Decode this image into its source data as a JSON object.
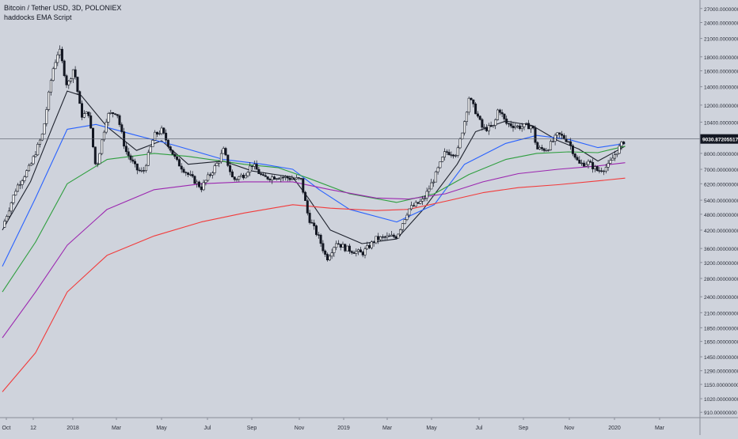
{
  "legend": {
    "symbol": "Bitcoin / Tether USD, 3D, POLONIEX",
    "script": "haddocks EMA Script"
  },
  "colors": {
    "background": "#cfd3dc",
    "ema_black": "#1e222d",
    "ema_blue": "#2962ff",
    "ema_green": "#2e9e3e",
    "ema_purple": "#9c27b0",
    "ema_red": "#f23b3b",
    "candle": "#131722",
    "axis_text": "#2a2e39"
  },
  "chart_data": {
    "type": "candlestick",
    "scale": "log",
    "title": "Bitcoin / Tether USD, 3D, POLONIEX",
    "x_ticks": [
      "Oct",
      "12",
      "2018",
      "Mar",
      "May",
      "Jul",
      "Sep",
      "Nov",
      "2019",
      "Mar",
      "May",
      "Jul",
      "Sep",
      "Nov",
      "2020",
      "Mar"
    ],
    "y_ticks": [
      "27000.00000000",
      "24000.00000000",
      "21000.00000000",
      "18000.00000000",
      "16000.00000000",
      "14000.00000000",
      "12000.00000000",
      "10400.00000000",
      "8000.00000000",
      "7000.00000000",
      "6200.00000000",
      "5400.00000000",
      "4800.00000000",
      "4200.00000000",
      "3600.00000000",
      "3200.00000000",
      "2800.00000000",
      "2400.00000000",
      "2100.00000000",
      "1850.00000000",
      "1650.00000000",
      "1450.00000000",
      "1290.00000000",
      "1150.00000000",
      "1020.00000000",
      "910.00000000"
    ],
    "ylim": [
      870,
      29000
    ],
    "last_price": "9030.87205517",
    "close_path": [
      [
        "2017-10-01",
        4300
      ],
      [
        "2017-10-20",
        6000
      ],
      [
        "2017-11-08",
        7200
      ],
      [
        "2017-11-25",
        9500
      ],
      [
        "2017-12-08",
        16000
      ],
      [
        "2017-12-17",
        19300
      ],
      [
        "2017-12-28",
        14000
      ],
      [
        "2018-01-06",
        16500
      ],
      [
        "2018-01-16",
        11000
      ],
      [
        "2018-01-26",
        11200
      ],
      [
        "2018-02-05",
        7000
      ],
      [
        "2018-02-20",
        11000
      ],
      [
        "2018-03-05",
        11400
      ],
      [
        "2018-03-17",
        8200
      ],
      [
        "2018-04-01",
        7000
      ],
      [
        "2018-04-10",
        6800
      ],
      [
        "2018-04-25",
        9300
      ],
      [
        "2018-05-05",
        9700
      ],
      [
        "2018-05-25",
        7500
      ],
      [
        "2018-06-10",
        6700
      ],
      [
        "2018-06-28",
        6000
      ],
      [
        "2018-07-20",
        7400
      ],
      [
        "2018-07-28",
        8200
      ],
      [
        "2018-08-10",
        6400
      ],
      [
        "2018-08-25",
        6700
      ],
      [
        "2018-09-05",
        7300
      ],
      [
        "2018-09-20",
        6500
      ],
      [
        "2018-10-10",
        6600
      ],
      [
        "2018-11-10",
        6400
      ],
      [
        "2018-11-20",
        4700
      ],
      [
        "2018-12-05",
        3900
      ],
      [
        "2018-12-15",
        3300
      ],
      [
        "2018-12-28",
        3800
      ],
      [
        "2019-01-10",
        3600
      ],
      [
        "2019-02-01",
        3450
      ],
      [
        "2019-02-20",
        3900
      ],
      [
        "2019-03-20",
        4000
      ],
      [
        "2019-04-05",
        5000
      ],
      [
        "2019-04-25",
        5400
      ],
      [
        "2019-05-10",
        6500
      ],
      [
        "2019-05-25",
        8100
      ],
      [
        "2019-06-10",
        8000
      ],
      [
        "2019-06-20",
        10500
      ],
      [
        "2019-06-26",
        12800
      ],
      [
        "2019-07-05",
        11400
      ],
      [
        "2019-07-15",
        9800
      ],
      [
        "2019-07-30",
        10000
      ],
      [
        "2019-08-05",
        11800
      ],
      [
        "2019-08-15",
        10300
      ],
      [
        "2019-09-01",
        10000
      ],
      [
        "2019-09-20",
        10100
      ],
      [
        "2019-09-26",
        8300
      ],
      [
        "2019-10-10",
        8300
      ],
      [
        "2019-10-25",
        9400
      ],
      [
        "2019-11-08",
        8900
      ],
      [
        "2019-11-22",
        7300
      ],
      [
        "2019-12-05",
        7400
      ],
      [
        "2019-12-18",
        6900
      ],
      [
        "2020-01-01",
        7200
      ],
      [
        "2020-01-12",
        8100
      ],
      [
        "2020-01-24",
        9000
      ]
    ],
    "ema_series": [
      {
        "color_key": "ema_black",
        "points": [
          [
            "2017-10-01",
            4200
          ],
          [
            "2017-11-08",
            6300
          ],
          [
            "2017-12-08",
            10000
          ],
          [
            "2017-12-28",
            13500
          ],
          [
            "2018-01-16",
            13000
          ],
          [
            "2018-02-20",
            10000
          ],
          [
            "2018-04-01",
            8200
          ],
          [
            "2018-05-05",
            8900
          ],
          [
            "2018-06-10",
            7300
          ],
          [
            "2018-07-28",
            7500
          ],
          [
            "2018-09-05",
            6900
          ],
          [
            "2018-10-30",
            6550
          ],
          [
            "2018-11-20",
            5500
          ],
          [
            "2018-12-20",
            4200
          ],
          [
            "2019-02-01",
            3750
          ],
          [
            "2019-03-20",
            3900
          ],
          [
            "2019-04-25",
            5000
          ],
          [
            "2019-06-10",
            7300
          ],
          [
            "2019-07-05",
            9600
          ],
          [
            "2019-08-15",
            10500
          ],
          [
            "2019-09-20",
            10100
          ],
          [
            "2019-10-25",
            8900
          ],
          [
            "2019-11-22",
            8300
          ],
          [
            "2019-12-18",
            7500
          ],
          [
            "2020-01-24",
            8500
          ]
        ]
      },
      {
        "color_key": "ema_blue",
        "points": [
          [
            "2017-10-01",
            3100
          ],
          [
            "2017-11-15",
            5500
          ],
          [
            "2017-12-28",
            9800
          ],
          [
            "2018-02-05",
            10200
          ],
          [
            "2018-04-01",
            9300
          ],
          [
            "2018-05-20",
            8600
          ],
          [
            "2018-07-28",
            7600
          ],
          [
            "2018-09-20",
            7300
          ],
          [
            "2018-10-30",
            7000
          ],
          [
            "2018-12-05",
            5900
          ],
          [
            "2019-01-15",
            5000
          ],
          [
            "2019-03-20",
            4500
          ],
          [
            "2019-05-10",
            5200
          ],
          [
            "2019-06-20",
            7300
          ],
          [
            "2019-08-15",
            8700
          ],
          [
            "2019-09-26",
            9300
          ],
          [
            "2019-11-08",
            9000
          ],
          [
            "2019-12-18",
            8400
          ],
          [
            "2020-01-24",
            8700
          ]
        ]
      },
      {
        "color_key": "ema_green",
        "points": [
          [
            "2017-10-01",
            2500
          ],
          [
            "2017-11-15",
            3800
          ],
          [
            "2017-12-28",
            6200
          ],
          [
            "2018-02-20",
            7600
          ],
          [
            "2018-04-25",
            8000
          ],
          [
            "2018-06-10",
            7800
          ],
          [
            "2018-08-25",
            7300
          ],
          [
            "2018-10-10",
            7100
          ],
          [
            "2018-11-20",
            6500
          ],
          [
            "2019-01-15",
            5700
          ],
          [
            "2019-03-20",
            5300
          ],
          [
            "2019-05-10",
            5700
          ],
          [
            "2019-06-26",
            6700
          ],
          [
            "2019-08-15",
            7600
          ],
          [
            "2019-09-26",
            8000
          ],
          [
            "2019-11-08",
            8100
          ],
          [
            "2019-12-18",
            8050
          ],
          [
            "2020-01-24",
            8500
          ]
        ]
      },
      {
        "color_key": "ema_purple",
        "points": [
          [
            "2017-10-01",
            1700
          ],
          [
            "2017-11-15",
            2500
          ],
          [
            "2017-12-28",
            3700
          ],
          [
            "2018-02-20",
            5000
          ],
          [
            "2018-04-25",
            5900
          ],
          [
            "2018-06-28",
            6200
          ],
          [
            "2018-08-25",
            6300
          ],
          [
            "2018-10-30",
            6300
          ],
          [
            "2018-12-20",
            5900
          ],
          [
            "2019-02-20",
            5500
          ],
          [
            "2019-04-05",
            5450
          ],
          [
            "2019-05-25",
            5700
          ],
          [
            "2019-07-15",
            6300
          ],
          [
            "2019-09-01",
            6750
          ],
          [
            "2019-10-25",
            7000
          ],
          [
            "2019-12-18",
            7200
          ],
          [
            "2020-01-24",
            7400
          ]
        ]
      },
      {
        "color_key": "ema_red",
        "points": [
          [
            "2017-10-01",
            1080
          ],
          [
            "2017-11-15",
            1500
          ],
          [
            "2017-12-28",
            2500
          ],
          [
            "2018-02-20",
            3400
          ],
          [
            "2018-04-25",
            4000
          ],
          [
            "2018-06-28",
            4500
          ],
          [
            "2018-08-25",
            4850
          ],
          [
            "2018-10-30",
            5200
          ],
          [
            "2018-12-20",
            5050
          ],
          [
            "2019-02-20",
            4950
          ],
          [
            "2019-04-05",
            5000
          ],
          [
            "2019-05-25",
            5350
          ],
          [
            "2019-07-15",
            5750
          ],
          [
            "2019-09-01",
            6000
          ],
          [
            "2019-10-25",
            6150
          ],
          [
            "2019-12-18",
            6350
          ],
          [
            "2020-01-24",
            6500
          ]
        ]
      }
    ]
  }
}
